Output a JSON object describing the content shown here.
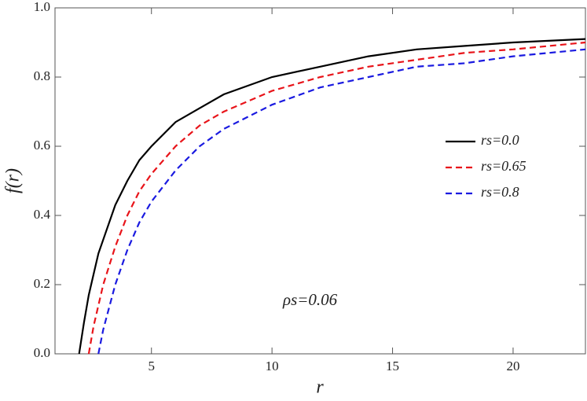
{
  "chart_data": {
    "type": "line",
    "x_label": "r",
    "y_label": "f(r)",
    "annotation": "ρs=0.06",
    "x": [
      2,
      2.2,
      2.4,
      2.6,
      2.8,
      3,
      3.5,
      4,
      4.5,
      5,
      6,
      7,
      8,
      10,
      12,
      14,
      16,
      18,
      20,
      23
    ],
    "series": [
      {
        "name": "rs=0.0",
        "color": "#000000",
        "dash": "solid",
        "values": [
          0,
          0.09,
          0.17,
          0.23,
          0.29,
          0.33,
          0.43,
          0.5,
          0.56,
          0.6,
          0.67,
          0.71,
          0.75,
          0.8,
          0.83,
          0.86,
          0.88,
          0.89,
          0.9,
          0.91
        ]
      },
      {
        "name": "rs=0.65",
        "color": "#e8141a",
        "dash": "dashed",
        "values": [
          null,
          null,
          0,
          0.08,
          0.14,
          0.2,
          0.31,
          0.4,
          0.47,
          0.52,
          0.6,
          0.66,
          0.7,
          0.76,
          0.8,
          0.83,
          0.85,
          0.87,
          0.88,
          0.9
        ]
      },
      {
        "name": "rs=0.8",
        "color": "#1a1ae0",
        "dash": "dashed",
        "values": [
          null,
          null,
          null,
          null,
          0,
          0.07,
          0.2,
          0.3,
          0.38,
          0.44,
          0.53,
          0.6,
          0.65,
          0.72,
          0.77,
          0.8,
          0.83,
          0.84,
          0.86,
          0.88
        ]
      }
    ],
    "xlim": [
      1,
      23
    ],
    "ylim": [
      0,
      1
    ],
    "xticks": [
      5,
      10,
      15,
      20
    ],
    "yticks": [
      {
        "value": 0,
        "label": "0.0"
      },
      0.2,
      0.4,
      0.6,
      0.8,
      {
        "value": 1,
        "label": "1.0"
      }
    ],
    "grid": false,
    "legend": "right"
  }
}
